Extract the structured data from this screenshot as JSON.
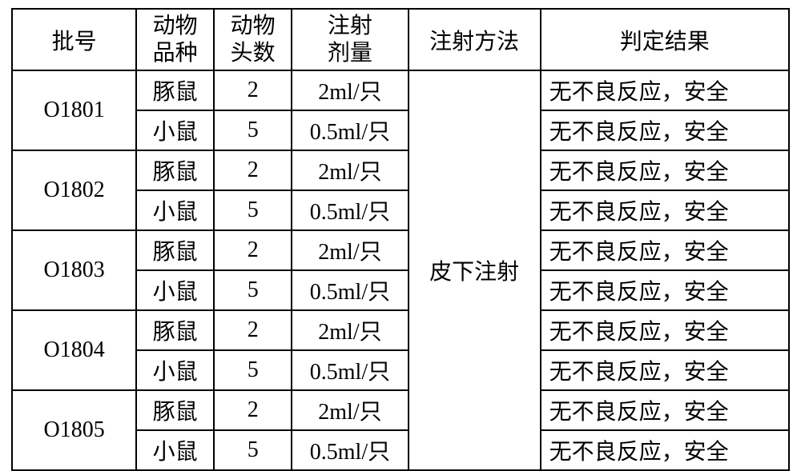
{
  "caption": "",
  "headers": {
    "batch": "批号",
    "species": [
      "动物",
      "品种"
    ],
    "count": [
      "动物",
      "头数"
    ],
    "dose": [
      "注射",
      "剂量"
    ],
    "method": "注射方法",
    "result": "判定结果"
  },
  "method_value": "皮下注射",
  "colors": {
    "border": "#000000",
    "bg": "#ffffff",
    "text": "#000000"
  },
  "typography": {
    "font_family": "SimSun / Songti SC serif",
    "font_size_pt": 21
  },
  "column_widths_pct": [
    16,
    10,
    10,
    15,
    17,
    32
  ],
  "batches": [
    {
      "id": "O1801",
      "rows": [
        {
          "species": "豚鼠",
          "count": "2",
          "dose": "2ml/只",
          "result": "无不良反应，安全"
        },
        {
          "species": "小鼠",
          "count": "5",
          "dose": "0.5ml/只",
          "result": "无不良反应，安全"
        }
      ]
    },
    {
      "id": "O1802",
      "rows": [
        {
          "species": "豚鼠",
          "count": "2",
          "dose": "2ml/只",
          "result": "无不良反应，安全"
        },
        {
          "species": "小鼠",
          "count": "5",
          "dose": "0.5ml/只",
          "result": "无不良反应，安全"
        }
      ]
    },
    {
      "id": "O1803",
      "rows": [
        {
          "species": "豚鼠",
          "count": "2",
          "dose": "2ml/只",
          "result": "无不良反应，安全"
        },
        {
          "species": "小鼠",
          "count": "5",
          "dose": "0.5ml/只",
          "result": "无不良反应，安全"
        }
      ]
    },
    {
      "id": "O1804",
      "rows": [
        {
          "species": "豚鼠",
          "count": "2",
          "dose": "2ml/只",
          "result": "无不良反应，安全"
        },
        {
          "species": "小鼠",
          "count": "5",
          "dose": "0.5ml/只",
          "result": "无不良反应，安全"
        }
      ]
    },
    {
      "id": "O1805",
      "rows": [
        {
          "species": "豚鼠",
          "count": "2",
          "dose": "2ml/只",
          "result": "无不良反应，安全"
        },
        {
          "species": "小鼠",
          "count": "5",
          "dose": "0.5ml/只",
          "result": "无不良反应，安全"
        }
      ]
    }
  ]
}
